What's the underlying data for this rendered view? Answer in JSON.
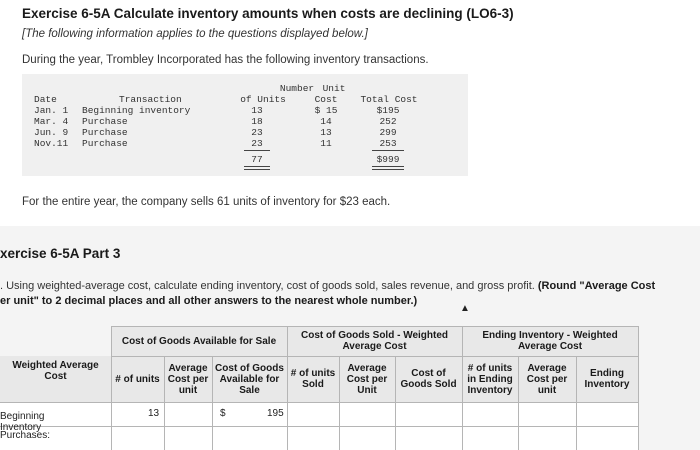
{
  "exercise": {
    "title": "Exercise 6-5A Calculate inventory amounts when costs are declining (LO6-3)",
    "note": "[The following information applies to the questions displayed below.]",
    "intro": "During the year, Trombley Incorporated has the following inventory transactions."
  },
  "transactions": {
    "headers": {
      "date": "Date",
      "transaction": "Transaction",
      "units_line1": "Number",
      "units_line2": "of Units",
      "cost_line1": "Unit",
      "cost_line2": "Cost",
      "total": "Total Cost"
    },
    "rows": [
      {
        "date": "Jan. 1",
        "transaction": "Beginning inventory",
        "units": "13",
        "cost": "$ 15",
        "total": "$195"
      },
      {
        "date": "Mar. 4",
        "transaction": "Purchase",
        "units": "18",
        "cost": "14",
        "total": "252"
      },
      {
        "date": "Jun. 9",
        "transaction": "Purchase",
        "units": "23",
        "cost": "13",
        "total": "299"
      },
      {
        "date": "Nov.11",
        "transaction": "Purchase",
        "units": "23",
        "cost": "11",
        "total": "253"
      }
    ],
    "totals": {
      "units": "77",
      "total": "$999"
    }
  },
  "sells_text": "For the entire year, the company sells 61 units of inventory for $23 each.",
  "part": {
    "title": "xercise 6-5A Part 3",
    "instr_line1_plain": ". Using weighted-average cost, calculate ending inventory, cost of goods sold, sales revenue, and gross profit. ",
    "instr_line1_bold": "(Round \"Average Cost",
    "instr_line2_bold": "er unit\" to 2 decimal places and all other answers to the nearest whole number.)"
  },
  "table": {
    "group_headers": {
      "cogas": "Cost of Goods Available for Sale",
      "cogs": "Cost of Goods Sold - Weighted Average Cost",
      "ending": "Ending Inventory - Weighted Average Cost"
    },
    "corner_label": "Weighted Average Cost",
    "columns": {
      "units_avail": "# of units",
      "avg_cost_avail": "Average Cost per unit",
      "cogas_total": "Cost of Goods Available for Sale",
      "units_sold": "# of units Sold",
      "avg_cost_sold": "Average Cost per Unit",
      "cogs_total": "Cost of Goods Sold",
      "units_ending": "# of units in Ending Inventory",
      "avg_cost_ending": "Average Cost per unit",
      "ending_total": "Ending Inventory"
    },
    "rows": {
      "beginning_label": "Beginning Inventory",
      "beginning_units": "13",
      "beginning_dollar": "$",
      "beginning_cogas": "195",
      "purchases_label": "Purchases:"
    }
  }
}
